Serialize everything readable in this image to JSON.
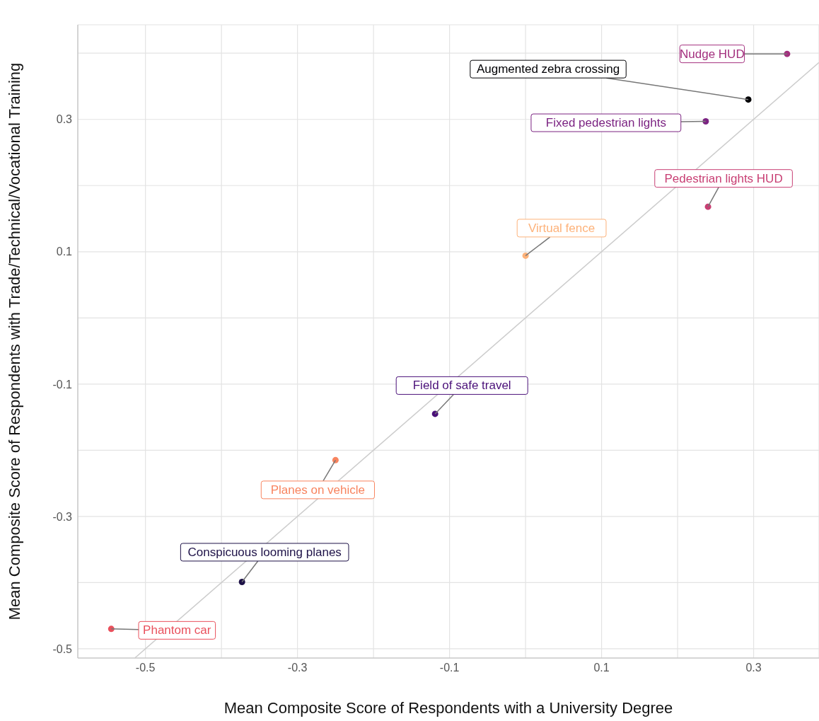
{
  "chart_data": {
    "type": "scatter",
    "xlabel": "Mean Composite Score of Respondents with a University Degree",
    "ylabel": "Mean Composite Score of Respondents with Trade/Technical/Vocational Training",
    "xlim": [
      -0.589,
      0.386
    ],
    "ylim": [
      -0.514,
      0.443
    ],
    "xticks": [
      -0.5,
      {
        "value": -0.4,
        "label": null
      },
      -0.3,
      {
        "value": -0.2,
        "label": null
      },
      -0.1,
      {
        "value": 0,
        "label": null
      },
      0.1,
      {
        "value": 0.2,
        "label": null
      },
      0.3
    ],
    "yticks": [
      -0.5,
      {
        "value": -0.4,
        "label": null
      },
      -0.3,
      {
        "value": -0.2,
        "label": null
      },
      -0.1,
      {
        "value": 0,
        "label": null
      },
      0.1,
      {
        "value": 0.2,
        "label": null
      },
      0.3,
      {
        "value": 0.4,
        "label": null
      }
    ],
    "grid": true,
    "legend": false,
    "marker": "circle",
    "series": [
      {
        "type": "line",
        "color": "#cccccc",
        "x": [
          -0.514,
          0.386
        ],
        "values": [
          -0.514,
          0.386
        ],
        "marker": "none"
      },
      {
        "name": "Nudge HUD",
        "color": "#a3307e",
        "x": [
          0.344
        ],
        "values": [
          0.399
        ]
      },
      {
        "name": "Augmented zebra crossing",
        "color": "#000004",
        "x": [
          0.293
        ],
        "values": [
          0.33
        ]
      },
      {
        "name": "Fixed pedestrian lights",
        "color": "#7b2382",
        "x": [
          0.237
        ],
        "values": [
          0.297
        ]
      },
      {
        "name": "Pedestrian lights HUD",
        "color": "#c83e73",
        "x": [
          0.24
        ],
        "values": [
          0.168
        ]
      },
      {
        "name": "Virtual fence",
        "color": "#fdb27a",
        "x": [
          0.0
        ],
        "values": [
          0.094
        ]
      },
      {
        "name": "Field of safe travel",
        "color": "#4a1079",
        "x": [
          -0.119
        ],
        "values": [
          -0.145
        ]
      },
      {
        "name": "Planes on vehicle",
        "color": "#f8845f",
        "x": [
          -0.25
        ],
        "values": [
          -0.215
        ]
      },
      {
        "name": "Conspicuous looming planes",
        "color": "#1d1147",
        "x": [
          -0.373
        ],
        "values": [
          -0.399
        ]
      },
      {
        "name": "Phantom car",
        "color": "#e9505c",
        "x": [
          -0.545
        ],
        "values": [
          -0.47
        ]
      }
    ]
  }
}
